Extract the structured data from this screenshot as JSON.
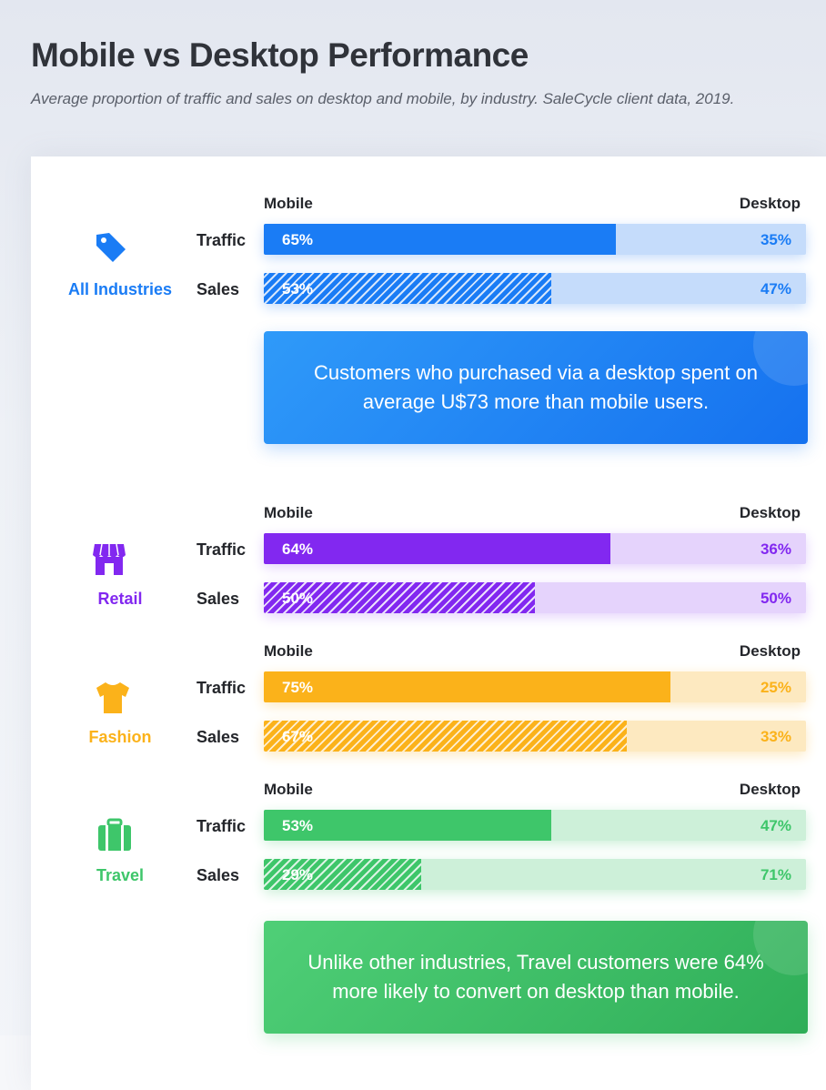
{
  "title": "Mobile vs Desktop Performance",
  "subtitle": "Average proportion of traffic and sales on desktop and mobile, by industry. SaleCycle client data, 2019.",
  "column_mobile": "Mobile",
  "column_desktop": "Desktop",
  "row_traffic": "Traffic",
  "row_sales": "Sales",
  "callouts": {
    "all_industries": "Customers who purchased via a desktop spent on average U$73 more than mobile users.",
    "travel": "Unlike other industries, Travel customers were 64% more likely to convert on desktop than mobile."
  },
  "industries": [
    {
      "name": "All Industries",
      "icon": "price-tag-icon",
      "color": "#1a7cf5",
      "light": "#c5dcfb",
      "traffic": {
        "mobile_label": "65%",
        "desktop_label": "35%"
      },
      "sales": {
        "mobile_label": "53%",
        "desktop_label": "47%"
      }
    },
    {
      "name": "Retail",
      "icon": "storefront-icon",
      "color": "#8228f0",
      "light": "#e5d3fc",
      "traffic": {
        "mobile_label": "64%",
        "desktop_label": "36%"
      },
      "sales": {
        "mobile_label": "50%",
        "desktop_label": "50%"
      }
    },
    {
      "name": "Fashion",
      "icon": "t-shirt-icon",
      "color": "#fbb21a",
      "light": "#fde9c0",
      "traffic": {
        "mobile_label": "75%",
        "desktop_label": "25%"
      },
      "sales": {
        "mobile_label": "67%",
        "desktop_label": "33%"
      }
    },
    {
      "name": "Travel",
      "icon": "suitcase-icon",
      "color": "#3ec66a",
      "light": "#cdf0d9",
      "traffic": {
        "mobile_label": "53%",
        "desktop_label": "47%"
      },
      "sales": {
        "mobile_label": "29%",
        "desktop_label": "71%"
      }
    }
  ],
  "chart_data": {
    "type": "bar",
    "title": "Mobile vs Desktop Performance",
    "subtitle": "Average proportion of traffic and sales on desktop and mobile, by industry. SaleCycle client data, 2019.",
    "categories": [
      "All Industries",
      "Retail",
      "Fashion",
      "Travel"
    ],
    "series": [
      {
        "name": "Mobile Traffic",
        "values": [
          65,
          64,
          75,
          53
        ]
      },
      {
        "name": "Desktop Traffic",
        "values": [
          35,
          36,
          25,
          47
        ]
      },
      {
        "name": "Mobile Sales",
        "values": [
          53,
          50,
          67,
          29
        ]
      },
      {
        "name": "Desktop Sales",
        "values": [
          47,
          50,
          33,
          71
        ]
      }
    ],
    "ylim": [
      0,
      100
    ],
    "grid": false
  }
}
